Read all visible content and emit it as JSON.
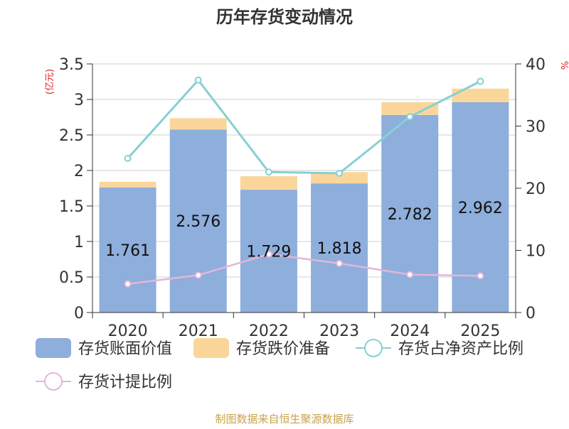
{
  "chart_data": {
    "type": "bar",
    "title": "历年存货变动情况",
    "y_left_unit": "(亿元)",
    "y_right_unit": "%",
    "categories": [
      "2020",
      "2021",
      "2022",
      "2023",
      "2024",
      "2025"
    ],
    "ylim_left": [
      0,
      3.5
    ],
    "yticks_left": [
      "0",
      "0.5",
      "1",
      "1.5",
      "2",
      "2.5",
      "3",
      "3.5"
    ],
    "ylim_right": [
      0,
      40
    ],
    "yticks_right": [
      "0",
      "10",
      "20",
      "30",
      "40"
    ],
    "grid": true,
    "legend_position": "bottom",
    "series": [
      {
        "name": "存货账面价值",
        "kind": "bar",
        "axis": "left",
        "color": "#8eaedc",
        "values": [
          1.761,
          2.576,
          1.729,
          1.818,
          2.782,
          2.962
        ],
        "labels": [
          "1.761",
          "2.576",
          "1.729",
          "1.818",
          "2.782",
          "2.962"
        ]
      },
      {
        "name": "存货跌价准备",
        "kind": "bar",
        "axis": "left",
        "color": "#fbd69a",
        "values": [
          0.08,
          0.16,
          0.19,
          0.16,
          0.18,
          0.19
        ]
      },
      {
        "name": "存货占净资产比例",
        "kind": "line",
        "axis": "right",
        "color": "#86d0d3",
        "values": [
          24.8,
          37.4,
          22.6,
          22.4,
          31.5,
          37.2
        ]
      },
      {
        "name": "存货计提比例",
        "kind": "line",
        "axis": "right",
        "color": "#e3b6d9",
        "values": [
          4.6,
          6.0,
          9.4,
          7.9,
          6.1,
          5.9
        ]
      }
    ],
    "source": "制图数据来自恒生聚源数据库"
  }
}
